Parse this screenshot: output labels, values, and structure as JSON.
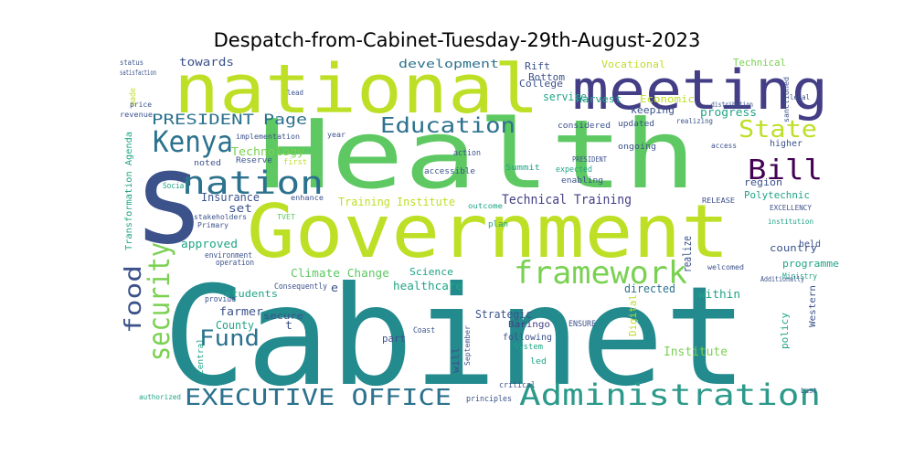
{
  "title": "Despatch-from-Cabinet-Tuesday-29th-August-2023",
  "colors": {
    "teal": "#238a8d",
    "dark_teal": "#2c728e",
    "blue": "#3b528b",
    "navy": "#433e85",
    "purple": "#440154",
    "green": "#5ec962",
    "lime": "#bddf26",
    "bright_green": "#7ad151",
    "sea_green": "#20a486",
    "aqua": "#25ab82"
  },
  "words": [
    {
      "text": "Cabinet",
      "color": "#238a8d"
    },
    {
      "text": "Health",
      "color": "#5ec962"
    },
    {
      "text": "Government",
      "color": "#bddf26"
    },
    {
      "text": "national",
      "color": "#bddf26"
    },
    {
      "text": "meeting",
      "color": "#433e85"
    },
    {
      "text": "s",
      "color": "#3b528b"
    },
    {
      "text": "framework",
      "color": "#7ad151"
    },
    {
      "text": "Administration",
      "color": "#2c9a8a"
    },
    {
      "text": "EXECUTIVE OFFICE",
      "color": "#2c728e"
    },
    {
      "text": "nation",
      "color": "#2c728e"
    },
    {
      "text": "Kenya",
      "color": "#2c728e"
    },
    {
      "text": "Education",
      "color": "#2c728e"
    },
    {
      "text": "State",
      "color": "#bddf26"
    },
    {
      "text": "Bill",
      "color": "#440154"
    },
    {
      "text": "security",
      "color": "#7ad151"
    },
    {
      "text": "food",
      "color": "#3b528b"
    },
    {
      "text": "Fund",
      "color": "#2c728e"
    },
    {
      "text": "PRESIDENT",
      "color": "#2c728e"
    },
    {
      "text": "Page",
      "color": "#2c728e"
    },
    {
      "text": "Technical Training",
      "color": "#433e85"
    },
    {
      "text": "Training Institute",
      "color": "#bddf26"
    },
    {
      "text": "development",
      "color": "#2c728e"
    },
    {
      "text": "Institute",
      "color": "#7ad151"
    },
    {
      "text": "region",
      "color": "#3b528b"
    },
    {
      "text": "towards",
      "color": "#3b528b"
    },
    {
      "text": "Technology",
      "color": "#7ad151"
    },
    {
      "text": "Insurance",
      "color": "#3b528b"
    },
    {
      "text": "set",
      "color": "#3b528b"
    },
    {
      "text": "approved",
      "color": "#20a486"
    },
    {
      "text": "Climate Change",
      "color": "#5ec962"
    },
    {
      "text": "healthcare",
      "color": "#20a486"
    },
    {
      "text": "Science",
      "color": "#20a486"
    },
    {
      "text": "Strategic",
      "color": "#3b528b"
    },
    {
      "text": "farmer",
      "color": "#3b528b"
    },
    {
      "text": "County",
      "color": "#20a486"
    },
    {
      "text": "students",
      "color": "#20a486"
    },
    {
      "text": "directed",
      "color": "#2c728e"
    },
    {
      "text": "within",
      "color": "#20a486"
    },
    {
      "text": "country",
      "color": "#3b528b"
    },
    {
      "text": "programme",
      "color": "#20a486"
    },
    {
      "text": "Polytechnic",
      "color": "#20a486"
    },
    {
      "text": "progress",
      "color": "#20a486"
    },
    {
      "text": "harvest",
      "color": "#20a486"
    },
    {
      "text": "keeping",
      "color": "#3b528b"
    },
    {
      "text": "service",
      "color": "#20a486"
    },
    {
      "text": "College",
      "color": "#3b528b"
    },
    {
      "text": "Vocational",
      "color": "#bddf26"
    },
    {
      "text": "Rift",
      "color": "#3b528b"
    },
    {
      "text": "Bottom",
      "color": "#3b528b"
    },
    {
      "text": "Technical",
      "color": "#7ad151"
    },
    {
      "text": "Economic",
      "color": "#bddf26"
    },
    {
      "text": "Transformation Agenda",
      "color": "#20a486"
    },
    {
      "text": "Digital",
      "color": "#bddf26"
    },
    {
      "text": "realize",
      "color": "#3b528b"
    },
    {
      "text": "policy",
      "color": "#20a486"
    },
    {
      "text": "Western",
      "color": "#3b528b"
    },
    {
      "text": "higher",
      "color": "#3b528b"
    },
    {
      "text": "held",
      "color": "#3b528b"
    },
    {
      "text": "Baringo",
      "color": "#433e85"
    },
    {
      "text": "following",
      "color": "#3b528b"
    },
    {
      "text": "Summit",
      "color": "#20a486"
    },
    {
      "text": "enabling",
      "color": "#3b528b"
    },
    {
      "text": "expected",
      "color": "#20a486"
    },
    {
      "text": "ongoing",
      "color": "#3b528b"
    },
    {
      "text": "updated",
      "color": "#3b528b"
    },
    {
      "text": "considered",
      "color": "#3b528b"
    },
    {
      "text": "Reserve",
      "color": "#3b528b"
    },
    {
      "text": "noted",
      "color": "#3b528b"
    },
    {
      "text": "first",
      "color": "#bddf26"
    },
    {
      "text": "action",
      "color": "#3b528b"
    },
    {
      "text": "accessible",
      "color": "#3b528b"
    },
    {
      "text": "outcome",
      "color": "#20a486"
    },
    {
      "text": "plan",
      "color": "#20a486"
    },
    {
      "text": "secure",
      "color": "#3b528b"
    },
    {
      "text": "part",
      "color": "#3b528b"
    },
    {
      "text": "will",
      "color": "#3b528b"
    },
    {
      "text": "led",
      "color": "#20a486"
    },
    {
      "text": "System",
      "color": "#20a486"
    },
    {
      "text": "principles",
      "color": "#3b528b"
    },
    {
      "text": "critical",
      "color": "#3b528b"
    },
    {
      "text": "Consequently",
      "color": "#3b528b"
    },
    {
      "text": "provide",
      "color": "#3b528b"
    },
    {
      "text": "operation",
      "color": "#3b528b"
    },
    {
      "text": "environment",
      "color": "#3b528b"
    },
    {
      "text": "Primary",
      "color": "#3b528b"
    },
    {
      "text": "stakeholders",
      "color": "#3b528b"
    },
    {
      "text": "enhance",
      "color": "#3b528b"
    },
    {
      "text": "implementation",
      "color": "#3b528b"
    },
    {
      "text": "Social",
      "color": "#20a486"
    },
    {
      "text": "central",
      "color": "#20a486"
    },
    {
      "text": "made",
      "color": "#bddf26"
    },
    {
      "text": "status",
      "color": "#3b528b"
    },
    {
      "text": "satisfaction",
      "color": "#3b528b"
    },
    {
      "text": "revenue",
      "color": "#3b528b"
    },
    {
      "text": "price",
      "color": "#3b528b"
    },
    {
      "text": "authorized",
      "color": "#20a486"
    },
    {
      "text": "RELEASE",
      "color": "#3b528b"
    },
    {
      "text": "EXCELLENCY",
      "color": "#3b528b"
    },
    {
      "text": "Ministry",
      "color": "#20a486"
    },
    {
      "text": "Additionally",
      "color": "#3b528b"
    },
    {
      "text": "welcomed",
      "color": "#3b528b"
    },
    {
      "text": "institution",
      "color": "#20a486"
    },
    {
      "text": "access",
      "color": "#3b528b"
    },
    {
      "text": "realizing",
      "color": "#3b528b"
    },
    {
      "text": "distribution",
      "color": "#3b528b"
    },
    {
      "text": "sanctioned",
      "color": "#3b528b"
    },
    {
      "text": "legal",
      "color": "#3b528b"
    },
    {
      "text": "Coast",
      "color": "#3b528b"
    },
    {
      "text": "TVET",
      "color": "#5ec962"
    },
    {
      "text": "lead",
      "color": "#3b528b"
    },
    {
      "text": "year",
      "color": "#3b528b"
    },
    {
      "text": "Last",
      "color": "#3b528b"
    },
    {
      "text": "PRESIDENT",
      "color": "#3b528b"
    },
    {
      "text": "September",
      "color": "#3b528b"
    },
    {
      "text": "ENSURE",
      "color": "#3b528b"
    },
    {
      "text": "e",
      "color": "#3b528b"
    },
    {
      "text": "t",
      "color": "#3b528b"
    }
  ]
}
